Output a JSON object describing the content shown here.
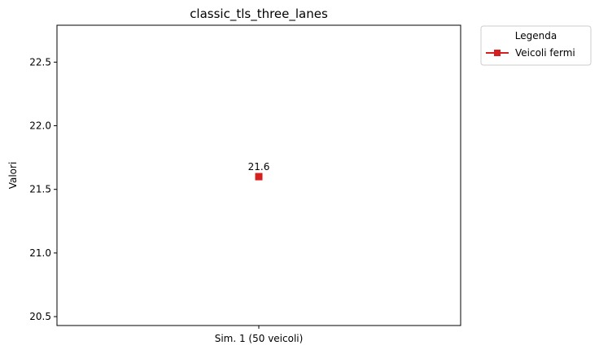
{
  "chart_data": {
    "type": "line",
    "title": "classic_tls_three_lanes",
    "xlabel": "",
    "ylabel": "Valori",
    "categories": [
      "Sim. 1 (50 veicoli)"
    ],
    "series": [
      {
        "name": "Veicoli fermi",
        "values": [
          21.6
        ],
        "color": "#d62020",
        "marker": "square"
      }
    ],
    "data_labels": [
      "21.6"
    ],
    "ylim": [
      20.43,
      22.79
    ],
    "yticks": [
      20.5,
      21.0,
      21.5,
      22.0,
      22.5
    ],
    "ytick_labels": [
      "20.5",
      "21.0",
      "21.5",
      "22.0",
      "22.5"
    ],
    "grid": false,
    "legend": {
      "title": "Legenda",
      "placement": "outside-top-right"
    }
  }
}
